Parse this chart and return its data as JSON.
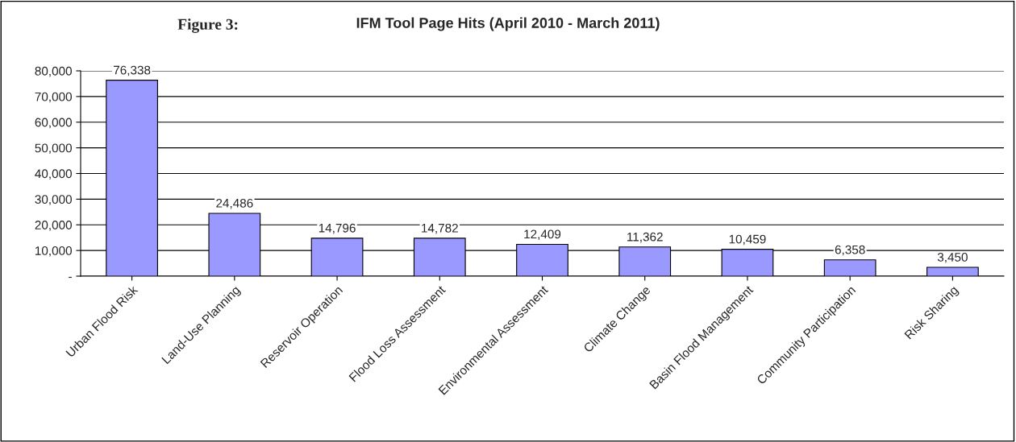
{
  "chart_data": {
    "type": "bar",
    "title": "IFM Tool Page Hits (April 2010 - March 2011)",
    "annotations": [
      "Figure 3:"
    ],
    "categories": [
      "Urban Flood Risk",
      "Land-Use Planning",
      "Reservoir Operation",
      "Flood Loss Assessment",
      "Environmental Assessment",
      "Climate Change",
      "Basin Flood Management",
      "Community Participation",
      "Risk Sharing"
    ],
    "values": [
      76338,
      24486,
      14796,
      14782,
      12409,
      11362,
      10459,
      6358,
      3450
    ],
    "color": "#9999ff",
    "value_labels": [
      "76,338",
      "24,486",
      "14,796",
      "14,782",
      "12,409",
      "11,362",
      "10,459",
      "6,358",
      "3,450"
    ],
    "ylim": [
      0,
      80000
    ],
    "yticks": [
      {
        "value": 0,
        "label": "-"
      },
      {
        "value": 10000,
        "label": "10,000"
      },
      {
        "value": 20000,
        "label": "20,000"
      },
      {
        "value": 30000,
        "label": "30,000"
      },
      {
        "value": 40000,
        "label": "40,000"
      },
      {
        "value": 50000,
        "label": "50,000"
      },
      {
        "value": 60000,
        "label": "60,000"
      },
      {
        "value": 70000,
        "label": "70,000"
      },
      {
        "value": 80000,
        "label": "80,000"
      }
    ],
    "grid": "y"
  }
}
